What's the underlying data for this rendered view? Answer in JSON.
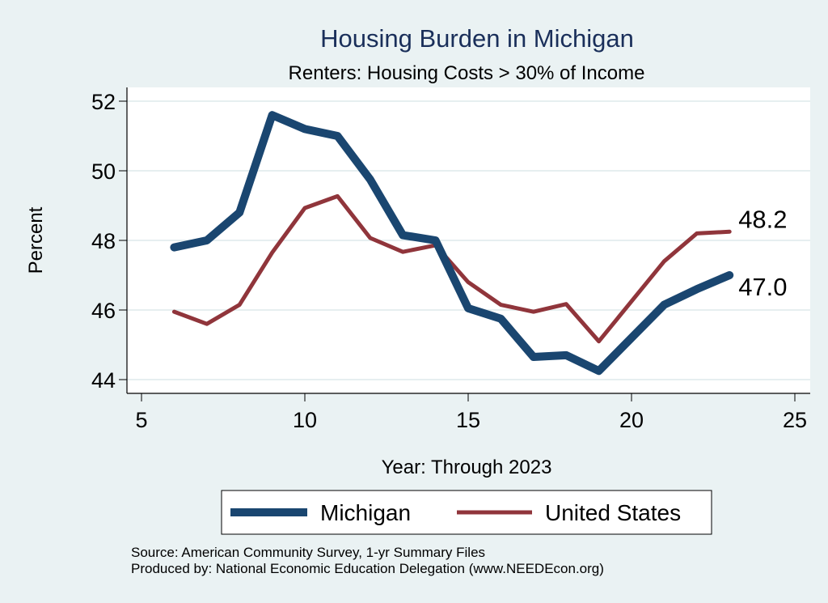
{
  "chart_data": {
    "type": "line",
    "title": "Housing Burden in Michigan",
    "subtitle": "Renters: Housing Costs > 30% of Income",
    "xlabel": "Year: Through 2023",
    "ylabel": "Percent",
    "xlim": [
      5,
      25
    ],
    "ylim": [
      44,
      52
    ],
    "xticks": [
      5,
      10,
      15,
      20,
      25
    ],
    "yticks": [
      44,
      46,
      48,
      50,
      52
    ],
    "grid": true,
    "legend_position": "bottom",
    "series": [
      {
        "name": "Michigan",
        "color": "#1a4670",
        "x": [
          6,
          7,
          8,
          9,
          10,
          11,
          12,
          13,
          14,
          15,
          16,
          17,
          18,
          19,
          21,
          22,
          23
        ],
        "values": [
          47.8,
          48.0,
          48.8,
          51.6,
          51.2,
          51.0,
          49.75,
          48.15,
          48.0,
          46.05,
          45.75,
          44.65,
          44.7,
          44.25,
          46.15,
          46.6,
          47.0
        ],
        "end_label": "47.0"
      },
      {
        "name": "United States",
        "color": "#90353b",
        "x": [
          6,
          7,
          8,
          9,
          10,
          11,
          12,
          13,
          14,
          15,
          16,
          17,
          18,
          19,
          21,
          22,
          23
        ],
        "values": [
          45.95,
          45.6,
          46.15,
          47.65,
          48.93,
          49.27,
          48.07,
          47.67,
          47.86,
          46.8,
          46.15,
          45.95,
          46.17,
          45.1,
          47.4,
          48.2,
          48.25
        ],
        "end_label": "48.2"
      }
    ],
    "notes": [
      "Source: American Community Survey, 1-yr Summary Files",
      "Produced by: National Economic Education Delegation (www.NEEDEcon.org)"
    ]
  }
}
